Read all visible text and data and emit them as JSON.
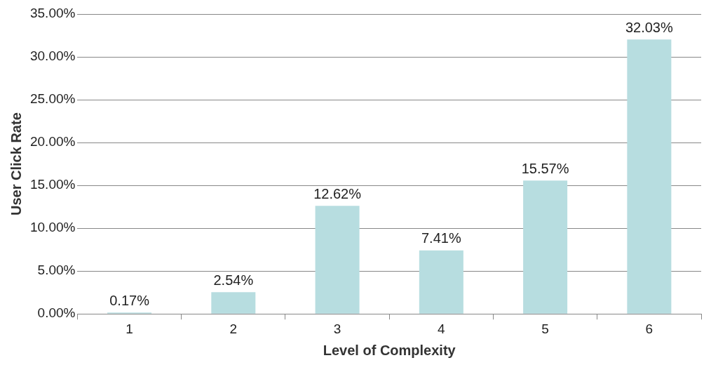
{
  "chart_data": {
    "type": "bar",
    "xlabel": "Level of Complexity",
    "ylabel": "User Click Rate",
    "categories": [
      "1",
      "2",
      "3",
      "4",
      "5",
      "6"
    ],
    "values": [
      0.17,
      2.54,
      12.62,
      7.41,
      15.57,
      32.03
    ],
    "value_labels": [
      "0.17%",
      "2.54%",
      "12.62%",
      "7.41%",
      "15.57%",
      "32.03%"
    ],
    "color": "#b7dde0",
    "ylim": [
      0,
      35
    ],
    "yticks": [
      {
        "value": 0,
        "label": "0.00%"
      },
      {
        "value": 5,
        "label": "5.00%"
      },
      {
        "value": 10,
        "label": "10.00%"
      },
      {
        "value": 15,
        "label": "15.00%"
      },
      {
        "value": 20,
        "label": "20.00%"
      },
      {
        "value": 25,
        "label": "25.00%"
      },
      {
        "value": 30,
        "label": "30.00%"
      },
      {
        "value": 35,
        "label": "35.00%"
      }
    ],
    "grid": "y"
  }
}
